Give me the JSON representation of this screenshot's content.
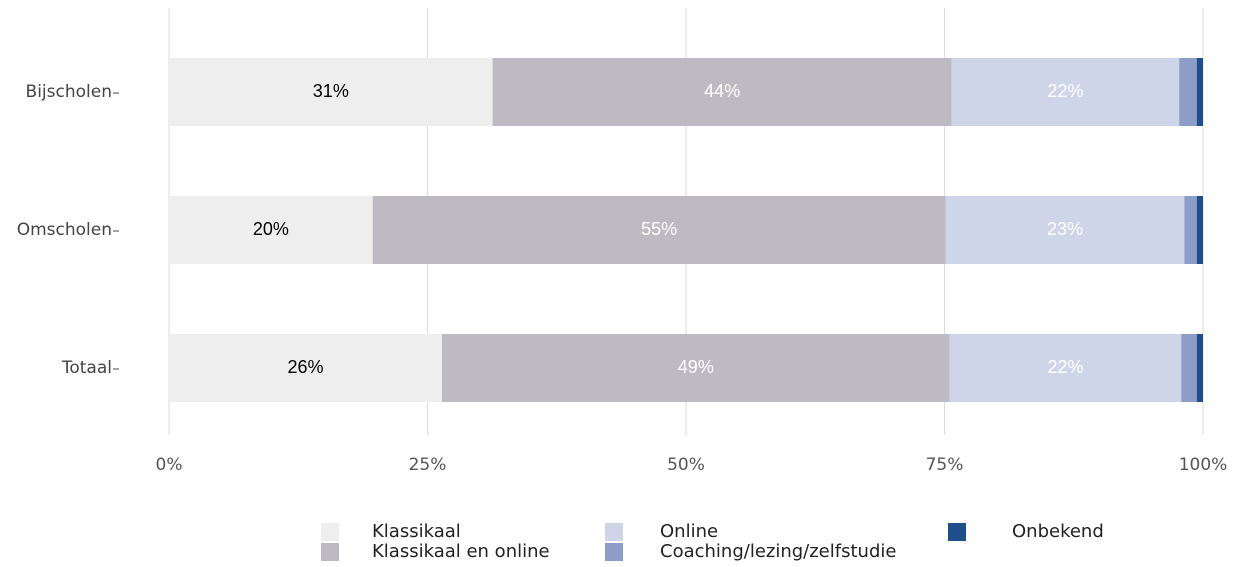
{
  "chart_data": {
    "type": "stacked-bar-horizontal",
    "categories": [
      "Bijscholen",
      "Omscholen",
      "Totaal"
    ],
    "series": [
      {
        "name": "Klassikaal",
        "color": "#eeeeee",
        "label_color": "#000000",
        "values": [
          31.3,
          19.7,
          26.4
        ],
        "value_labels": [
          "31%",
          "20%",
          "26%"
        ]
      },
      {
        "name": "Klassikaal en online",
        "color": "#bdbbc1",
        "label_color": "#ffffff",
        "values": [
          44.4,
          55.4,
          49.1
        ],
        "value_labels": [
          "44%",
          "55%",
          "49%"
        ]
      },
      {
        "name": "Online",
        "color": "#ced5e9",
        "label_color": "#ffffff",
        "values": [
          22.0,
          23.1,
          22.4
        ],
        "value_labels": [
          "22%",
          "23%",
          "22%"
        ]
      },
      {
        "name": "Coaching/lezing/zelfstudie",
        "color": "#8c9dc8",
        "values": [
          1.7,
          1.2,
          1.5
        ]
      },
      {
        "name": "Onbekend",
        "color": "#1f4e8c",
        "values": [
          0.6,
          0.6,
          0.6
        ]
      }
    ],
    "xlim": [
      0,
      100
    ],
    "xticks": [
      {
        "value": 0,
        "label": "0%"
      },
      {
        "value": 25,
        "label": "25%"
      },
      {
        "value": 50,
        "label": "50%"
      },
      {
        "value": 75,
        "label": "75%"
      },
      {
        "value": 100,
        "label": "100%"
      }
    ],
    "grid": true,
    "legend": "bottom"
  }
}
